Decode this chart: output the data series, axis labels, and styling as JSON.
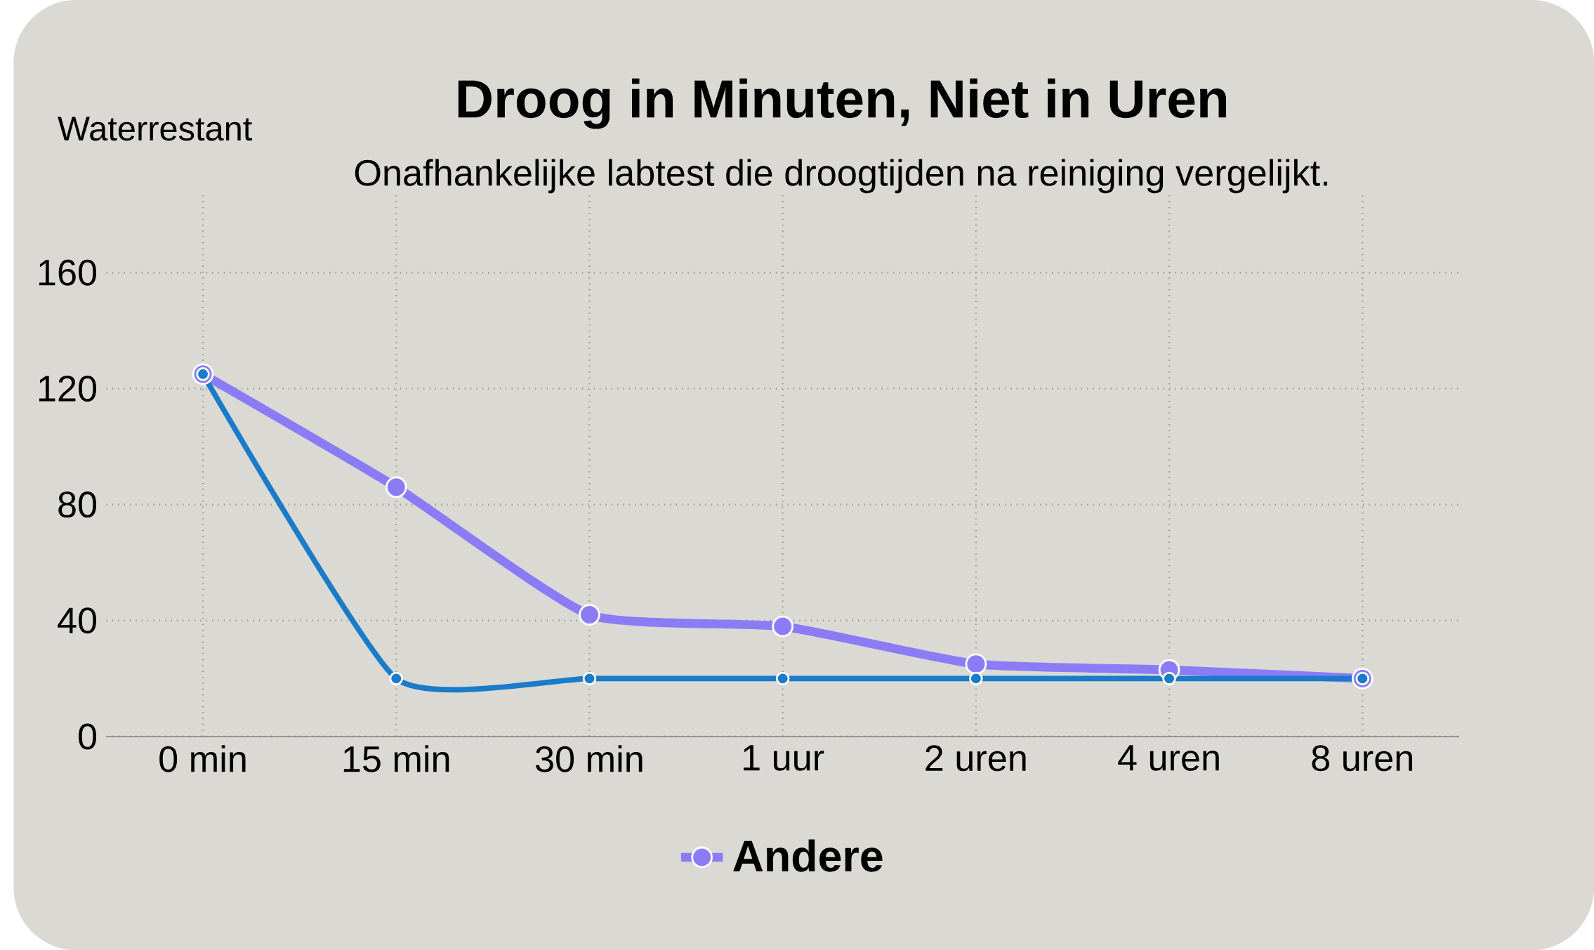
{
  "chart_data": {
    "type": "line",
    "title": "Droog in Minuten, Niet in Uren",
    "subtitle": "Onafhankelijke labtest die droogtijden na reiniging vergelijkt.",
    "ylabel": "Waterrestant",
    "categories": [
      "0 min",
      "15 min",
      "30 min",
      "1 uur",
      "2 uren",
      "4 uren",
      "8 uren"
    ],
    "series": [
      {
        "color": "#1a7bc8",
        "values": [
          125,
          20,
          20,
          20,
          20,
          20,
          20
        ]
      },
      {
        "name": "Andere",
        "color": "#8b7cf6",
        "values": [
          125,
          86,
          42,
          38,
          25,
          23,
          20
        ]
      }
    ],
    "ylim": [
      0,
      188
    ],
    "yticks": [
      0,
      40,
      80,
      120,
      160
    ],
    "grid": true,
    "legend": "bottom",
    "marker": "circle",
    "line_style": "solid"
  }
}
